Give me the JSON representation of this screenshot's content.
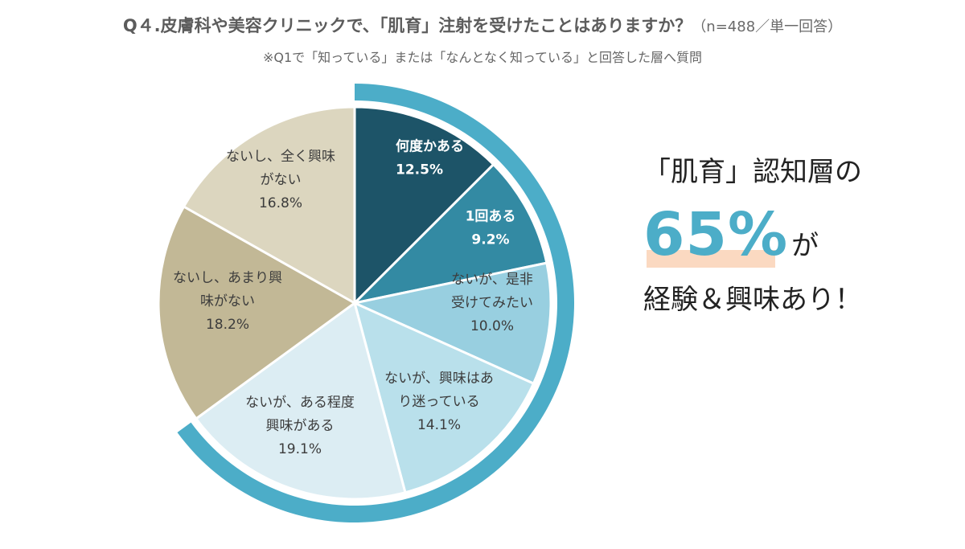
{
  "title": {
    "main": "Q４.皮膚科や美容クリニックで、「肌育」注射を受けたことはありますか？",
    "note": "（n=488／単一回答）"
  },
  "subtitle": "※Q1で「知っている」または「なんとなく知っている」と回答した層へ質問",
  "colors": {
    "ring": "#4cadc8",
    "slice_1": "#1d5468",
    "slice_2": "#338aa3",
    "slice_3": "#98cfe0",
    "slice_4": "#b9e0eb",
    "slice_5": "#dcedf3",
    "slice_6": "#c2b896",
    "slice_7": "#dcd6bf"
  },
  "chart_data": {
    "type": "pie",
    "title": "",
    "slices": [
      {
        "label_lines": [
          "何度かある"
        ],
        "value": 12.5,
        "display": "12.5%"
      },
      {
        "label_lines": [
          "1回ある"
        ],
        "value": 9.2,
        "display": "9.2%"
      },
      {
        "label_lines": [
          "ないが、是非",
          "受けてみたい"
        ],
        "value": 10.0,
        "display": "10.0%"
      },
      {
        "label_lines": [
          "ないが、興味はあ",
          "り迷っている"
        ],
        "value": 14.1,
        "display": "14.1%"
      },
      {
        "label_lines": [
          "ないが、ある程度",
          "興味がある"
        ],
        "value": 19.1,
        "display": "19.1%"
      },
      {
        "label_lines": [
          "ないし、あまり興",
          "味がない"
        ],
        "value": 18.2,
        "display": "18.2%"
      },
      {
        "label_lines": [
          "ないし、全く興味",
          "がない"
        ],
        "value": 16.8,
        "display": "16.8%"
      }
    ],
    "highlight_ring": {
      "covers_slices": 5,
      "total": 65
    }
  },
  "callout": {
    "line1": "「肌育」認知層の",
    "percent": "65%",
    "particle": "が",
    "line3": "経験＆興味あり！"
  }
}
